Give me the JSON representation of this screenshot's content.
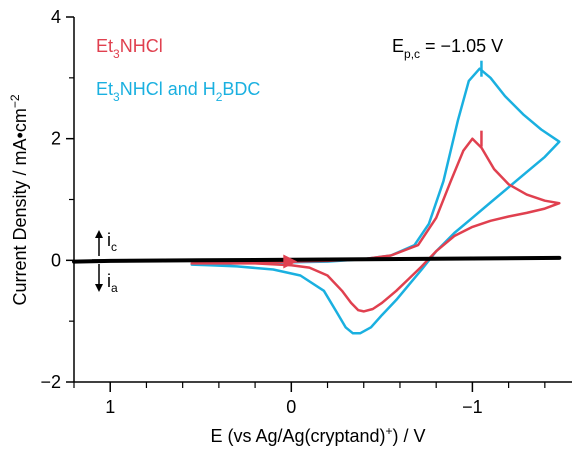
{
  "chart_data": {
    "type": "line",
    "xlabel_main": "E (vs Ag/Ag(cryptand)",
    "xlabel_sup": "+",
    "xlabel_tail": ") / V",
    "ylabel": "Current Density / mA•cm",
    "ylabel_sup": "−2",
    "xlim": [
      1.2,
      -1.55
    ],
    "ylim": [
      -2,
      4
    ],
    "x_ticks": [
      1,
      0,
      -1
    ],
    "x_tick_labels": [
      "1",
      "0",
      "−1"
    ],
    "y_ticks": [
      -2,
      0,
      2,
      4
    ],
    "y_tick_labels": [
      "−2",
      "0",
      "2",
      "4"
    ],
    "annotation": {
      "main": "E",
      "sub": "p,c",
      "rest": " = −1.05 V"
    },
    "current_labels": {
      "ic": "i",
      "ic_sub": "c",
      "ia": "i",
      "ia_sub": "a"
    },
    "series": [
      {
        "name_parts": [
          "Et",
          "3",
          "NHCl"
        ],
        "color": "#e0404f",
        "x": [
          0.55,
          0.4,
          0.2,
          0.0,
          -0.2,
          -0.4,
          -0.55,
          -0.7,
          -0.8,
          -0.88,
          -0.95,
          -1.0,
          -1.05,
          -1.12,
          -1.2,
          -1.3,
          -1.4,
          -1.48,
          -1.4,
          -1.3,
          -1.2,
          -1.1,
          -1.0,
          -0.9,
          -0.8,
          -0.72,
          -0.65,
          -0.58,
          -0.5,
          -0.45,
          -0.4,
          -0.37,
          -0.33,
          -0.28,
          -0.2,
          -0.1,
          0.0,
          0.2,
          0.4,
          0.55
        ],
        "y": [
          -0.05,
          -0.04,
          -0.03,
          -0.02,
          -0.01,
          0.02,
          0.08,
          0.25,
          0.7,
          1.3,
          1.8,
          2.0,
          1.85,
          1.5,
          1.25,
          1.08,
          0.98,
          0.94,
          0.85,
          0.78,
          0.72,
          0.65,
          0.55,
          0.4,
          0.15,
          -0.1,
          -0.3,
          -0.5,
          -0.7,
          -0.8,
          -0.84,
          -0.82,
          -0.7,
          -0.5,
          -0.25,
          -0.12,
          -0.08,
          -0.05,
          -0.05,
          -0.05
        ]
      },
      {
        "name_parts": [
          "Et",
          "3",
          "NHCl and H",
          "2",
          "BDC"
        ],
        "color": "#1ab0e0",
        "x": [
          0.55,
          0.4,
          0.2,
          0.0,
          -0.2,
          -0.4,
          -0.55,
          -0.68,
          -0.76,
          -0.84,
          -0.92,
          -0.98,
          -1.04,
          -1.1,
          -1.18,
          -1.28,
          -1.38,
          -1.48,
          -1.4,
          -1.3,
          -1.2,
          -1.1,
          -1.0,
          -0.9,
          -0.8,
          -0.72,
          -0.65,
          -0.58,
          -0.5,
          -0.44,
          -0.38,
          -0.34,
          -0.3,
          -0.25,
          -0.18,
          -0.05,
          0.1,
          0.3,
          0.45,
          0.55
        ],
        "y": [
          -0.07,
          -0.06,
          -0.04,
          -0.03,
          -0.02,
          0.02,
          0.08,
          0.25,
          0.6,
          1.3,
          2.3,
          2.95,
          3.15,
          3.0,
          2.7,
          2.4,
          2.15,
          1.95,
          1.7,
          1.45,
          1.2,
          0.95,
          0.7,
          0.45,
          0.15,
          -0.15,
          -0.4,
          -0.65,
          -0.9,
          -1.1,
          -1.2,
          -1.2,
          -1.1,
          -0.85,
          -0.5,
          -0.25,
          -0.15,
          -0.1,
          -0.08,
          -0.07
        ]
      },
      {
        "name_parts": [],
        "color": "#000000",
        "x": [
          1.2,
          1.0,
          0.5,
          0.0,
          -0.5,
          -1.0,
          -1.48
        ],
        "y": [
          -0.02,
          -0.01,
          0.0,
          0.01,
          0.02,
          0.03,
          0.04
        ]
      }
    ],
    "peak_markers": [
      {
        "x": -1.05,
        "y": 2.0,
        "color": "#e0404f"
      },
      {
        "x": -1.05,
        "y": 3.15,
        "color": "#1ab0e0"
      }
    ],
    "arrow": {
      "x": 0.0,
      "y": -0.02,
      "color": "#e0404f"
    }
  }
}
